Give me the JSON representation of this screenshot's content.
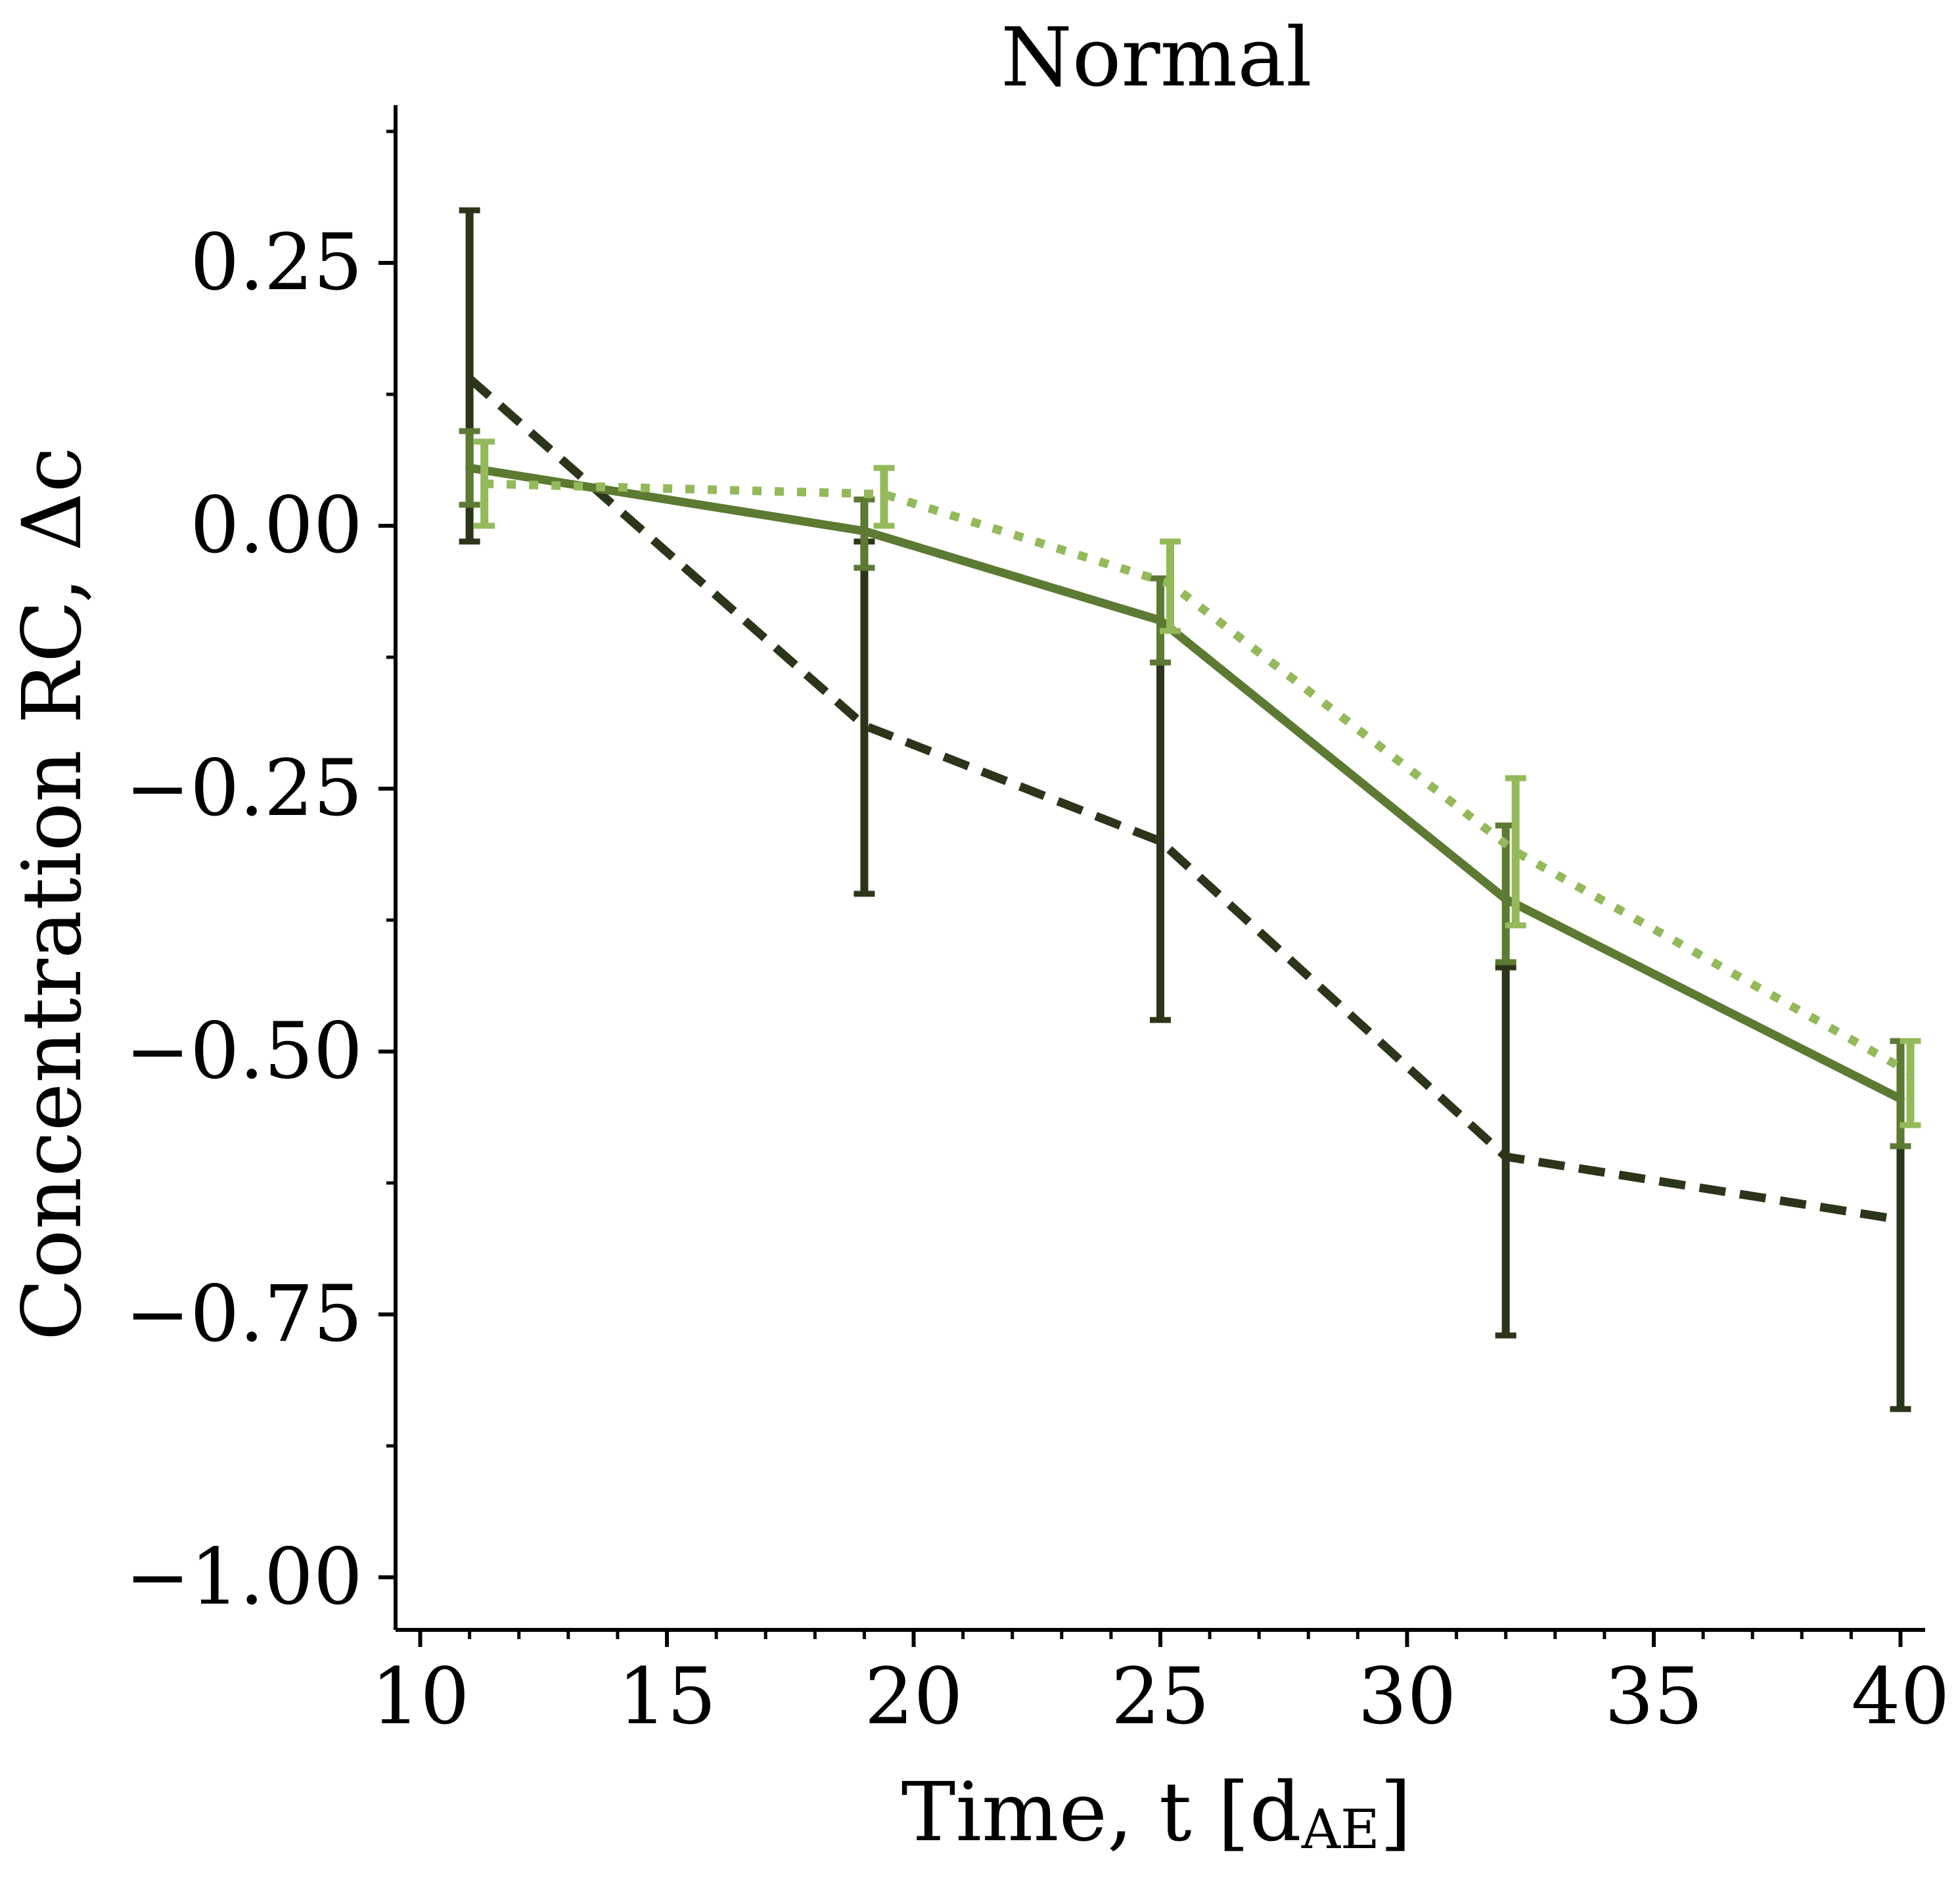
{
  "chart_data": {
    "type": "line",
    "title": "Normal",
    "xlabel": "Time, t [d",
    "xlabel_sub": "AE",
    "xlabel_close": "]",
    "ylabel": "Concentration RC, Δc",
    "xlim": [
      9.5,
      40.5
    ],
    "ylim": [
      -1.05,
      0.4
    ],
    "x_ticks": [
      10,
      15,
      20,
      25,
      30,
      35,
      40
    ],
    "x_tick_labels": [
      "10",
      "15",
      "20",
      "25",
      "30",
      "35",
      "40"
    ],
    "x_minor_step": 1,
    "y_ticks": [
      0.25,
      0.0,
      -0.25,
      -0.5,
      -0.75,
      -1.0
    ],
    "y_tick_labels": [
      "0.25",
      "0.00",
      "−0.25",
      "−0.50",
      "−0.75",
      "−1.00"
    ],
    "y_minor_step": 0.125,
    "grid": false,
    "legend": "none",
    "series": [
      {
        "style": "dashed",
        "color": "#2b3519",
        "x": [
          11,
          19,
          25,
          32,
          40
        ],
        "y": [
          0.14,
          -0.19,
          -0.3,
          -0.6,
          -0.66
        ],
        "err_low": [
          -0.015,
          -0.35,
          -0.47,
          -0.77,
          -0.84
        ],
        "err_high": [
          0.3,
          -0.015,
          -0.13,
          -0.42,
          -0.49
        ]
      },
      {
        "style": "solid",
        "color": "#5c7a32",
        "x": [
          11,
          19,
          25,
          32,
          40
        ],
        "y": [
          0.055,
          -0.005,
          -0.09,
          -0.355,
          -0.545
        ],
        "err_low": [
          0.02,
          -0.04,
          -0.13,
          -0.415,
          -0.59
        ],
        "err_high": [
          0.09,
          0.025,
          -0.05,
          -0.285,
          -0.49
        ]
      },
      {
        "style": "dotted",
        "color": "#93b95a",
        "x": [
          11.3,
          19.4,
          25.2,
          32.2,
          40.2
        ],
        "y": [
          0.04,
          0.03,
          -0.055,
          -0.31,
          -0.52
        ],
        "err_low": [
          0.0,
          0.0,
          -0.1,
          -0.38,
          -0.57
        ],
        "err_high": [
          0.08,
          0.055,
          -0.015,
          -0.24,
          -0.49
        ]
      }
    ]
  }
}
